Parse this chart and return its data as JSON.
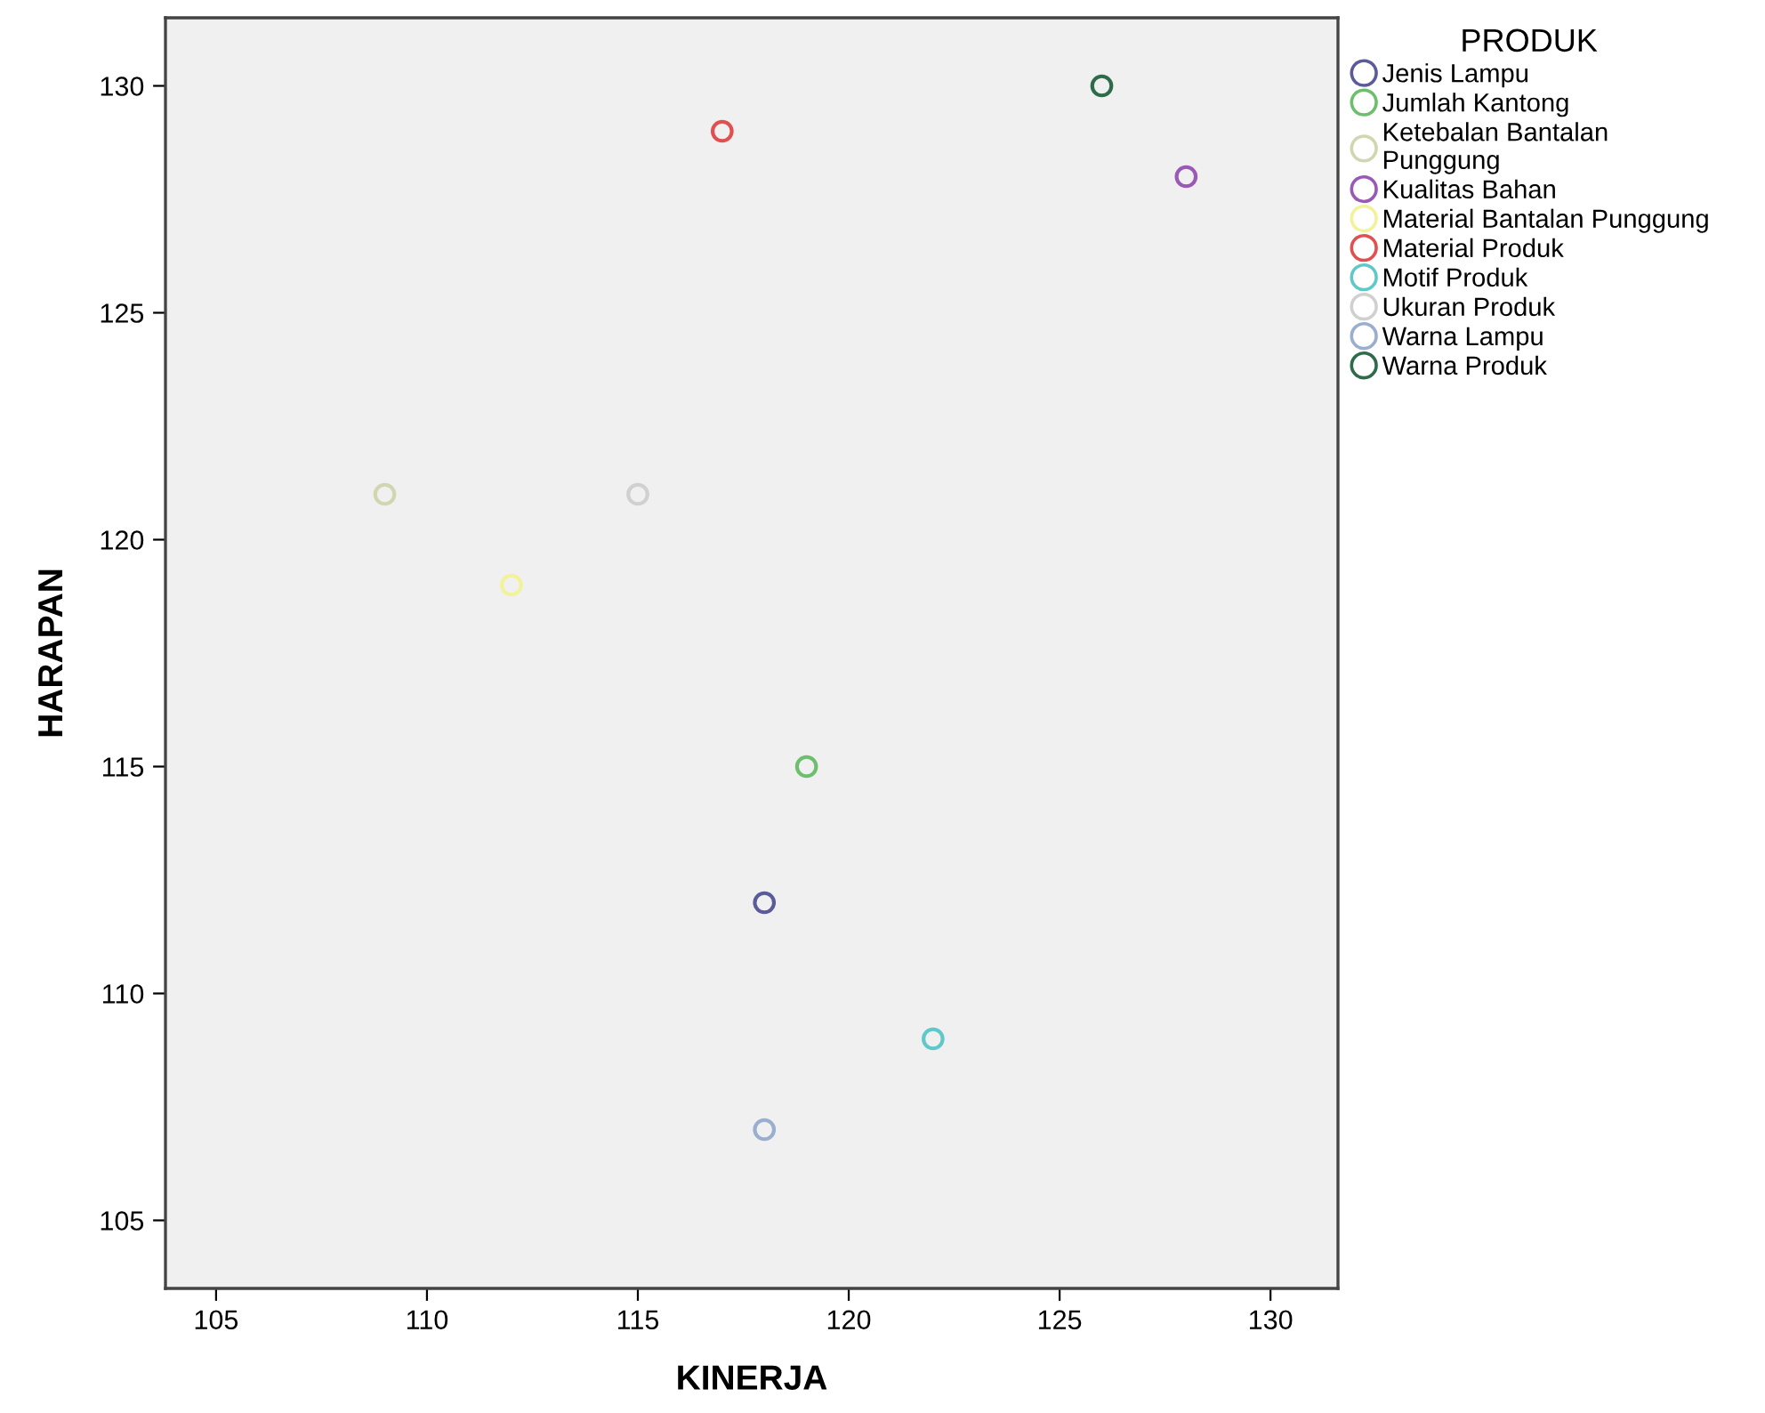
{
  "chart_data": {
    "type": "scatter",
    "xlabel": "KINERJA",
    "ylabel": "HARAPAN",
    "legend_title": "PRODUK",
    "legend": "right",
    "grid": false,
    "marker": "circle",
    "xlim": [
      103.8,
      131.6
    ],
    "ylim": [
      103.5,
      131.5
    ],
    "xticks": [
      105,
      110,
      115,
      120,
      125,
      130
    ],
    "yticks": [
      105,
      110,
      115,
      120,
      125,
      130
    ],
    "series": [
      {
        "name": "Jenis Lampu",
        "color": "#5b5b9a",
        "x": [
          118
        ],
        "values": [
          112
        ]
      },
      {
        "name": "Jumlah Kantong",
        "color": "#6dbf6d",
        "x": [
          119
        ],
        "values": [
          115
        ]
      },
      {
        "name": "Ketebalan Bantalan\nPunggung",
        "color": "#d2d6b0",
        "x": [
          109
        ],
        "values": [
          121
        ]
      },
      {
        "name": "Kualitas Bahan",
        "color": "#9b59b6",
        "x": [
          128
        ],
        "values": [
          128
        ]
      },
      {
        "name": "Material Bantalan Punggung",
        "color": "#f2f29a",
        "x": [
          112
        ],
        "values": [
          119
        ]
      },
      {
        "name": "Material Produk",
        "color": "#e05050",
        "x": [
          117
        ],
        "values": [
          129
        ]
      },
      {
        "name": "Motif Produk",
        "color": "#60c8c8",
        "x": [
          122
        ],
        "values": [
          109
        ]
      },
      {
        "name": "Ukuran Produk",
        "color": "#d0d0d0",
        "x": [
          115
        ],
        "values": [
          121
        ]
      },
      {
        "name": "Warna Lampu",
        "color": "#9aaed0",
        "x": [
          118
        ],
        "values": [
          107
        ]
      },
      {
        "name": "Warna Produk",
        "color": "#2e6b4a",
        "x": [
          126
        ],
        "values": [
          130
        ]
      }
    ]
  }
}
